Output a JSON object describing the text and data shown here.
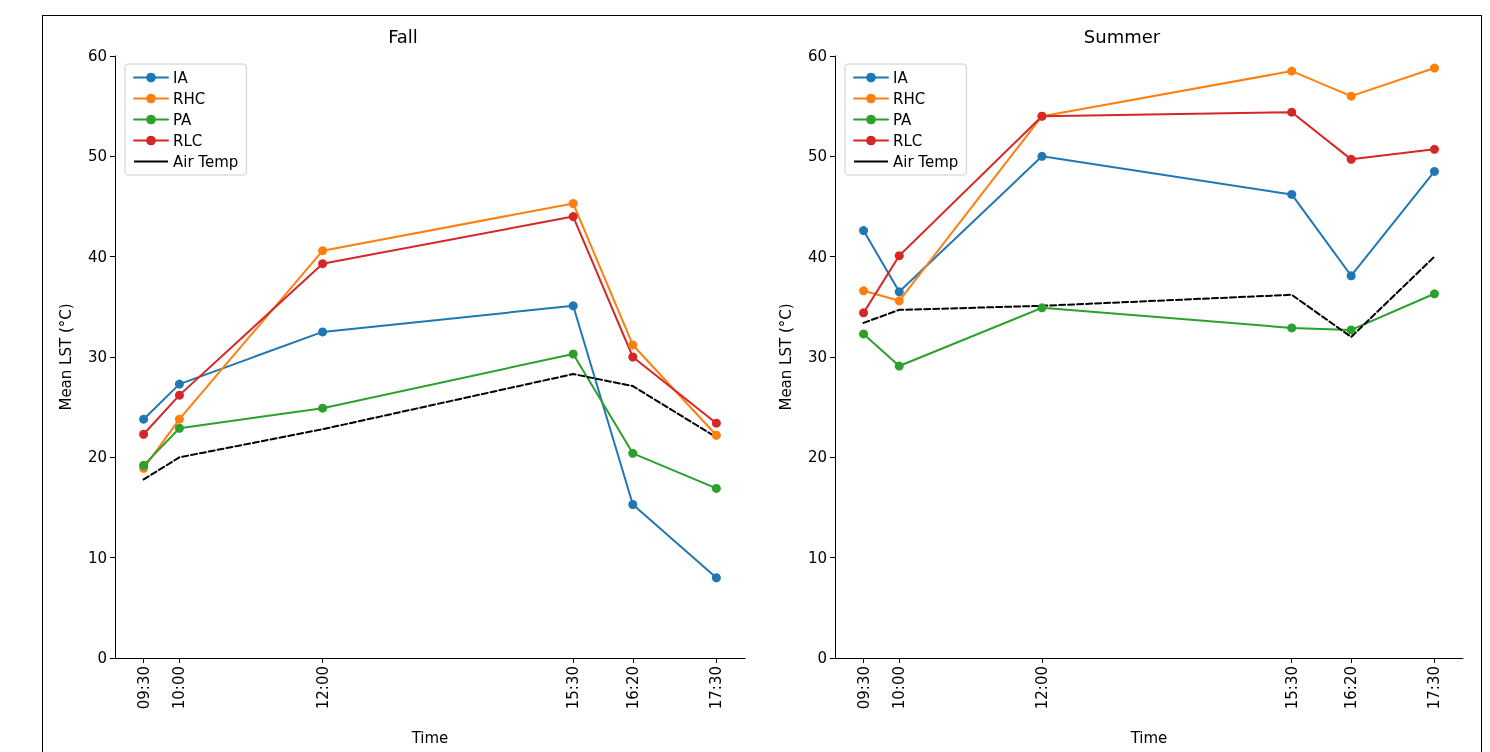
{
  "chart_data": [
    {
      "type": "line",
      "title": "Fall",
      "xlabel": "Time",
      "ylabel": "Mean LST (°C)",
      "x": [
        9.5,
        10,
        12,
        15.5,
        16.333,
        17.5
      ],
      "xlim": [
        9.1,
        17.9
      ],
      "xticks": [
        {
          "value": 9.5,
          "label": "09:30"
        },
        {
          "value": 10,
          "label": "10:00"
        },
        {
          "value": 12,
          "label": "12:00"
        },
        {
          "value": 15.5,
          "label": "15:30"
        },
        {
          "value": 16.333,
          "label": "16:20"
        },
        {
          "value": 17.5,
          "label": "17:30"
        }
      ],
      "ylim": [
        0,
        60
      ],
      "yticks": [
        0,
        10,
        20,
        30,
        40,
        50,
        60
      ],
      "legend": "top left",
      "grid": false,
      "marker": "circle",
      "line_style": "solid",
      "series": [
        {
          "name": "IA",
          "color": "#1f77b4",
          "values": [
            23.8,
            27.3,
            32.5,
            35.1,
            15.3,
            8.0
          ]
        },
        {
          "name": "RHC",
          "color": "#ff7f0e",
          "values": [
            18.9,
            23.8,
            40.6,
            45.3,
            31.2,
            22.2
          ]
        },
        {
          "name": "PA",
          "color": "#2ca02c",
          "values": [
            19.2,
            22.9,
            24.9,
            30.3,
            20.4,
            16.9
          ]
        },
        {
          "name": "RLC",
          "color": "#d62728",
          "values": [
            22.3,
            26.2,
            39.3,
            44.0,
            30.0,
            23.4
          ]
        },
        {
          "name": "Air Temp",
          "color": "#000000",
          "marker": "none",
          "line_style": "dashed",
          "values": [
            17.8,
            20.0,
            22.8,
            28.3,
            27.1,
            22.0
          ]
        }
      ]
    },
    {
      "type": "line",
      "title": "Summer",
      "xlabel": "Time",
      "ylabel": "Mean LST (°C)",
      "x": [
        9.5,
        10,
        12,
        15.5,
        16.333,
        17.5
      ],
      "xlim": [
        9.1,
        17.9
      ],
      "xticks": [
        {
          "value": 9.5,
          "label": "09:30"
        },
        {
          "value": 10,
          "label": "10:00"
        },
        {
          "value": 12,
          "label": "12:00"
        },
        {
          "value": 15.5,
          "label": "15:30"
        },
        {
          "value": 16.333,
          "label": "16:20"
        },
        {
          "value": 17.5,
          "label": "17:30"
        }
      ],
      "ylim": [
        0,
        60
      ],
      "yticks": [
        0,
        10,
        20,
        30,
        40,
        50,
        60
      ],
      "legend": "top left",
      "grid": false,
      "marker": "circle",
      "line_style": "solid",
      "series": [
        {
          "name": "IA",
          "color": "#1f77b4",
          "values": [
            42.6,
            36.5,
            50.0,
            46.2,
            38.1,
            48.5
          ]
        },
        {
          "name": "RHC",
          "color": "#ff7f0e",
          "values": [
            36.6,
            35.6,
            54.0,
            58.5,
            56.0,
            58.8
          ]
        },
        {
          "name": "PA",
          "color": "#2ca02c",
          "values": [
            32.3,
            29.1,
            34.9,
            32.9,
            32.7,
            36.3
          ]
        },
        {
          "name": "RLC",
          "color": "#d62728",
          "values": [
            34.4,
            40.1,
            54.0,
            54.4,
            49.7,
            50.7
          ]
        },
        {
          "name": "Air Temp",
          "color": "#000000",
          "marker": "none",
          "line_style": "dashed",
          "values": [
            33.4,
            34.7,
            35.1,
            36.2,
            32.0,
            40.0
          ]
        }
      ]
    }
  ]
}
